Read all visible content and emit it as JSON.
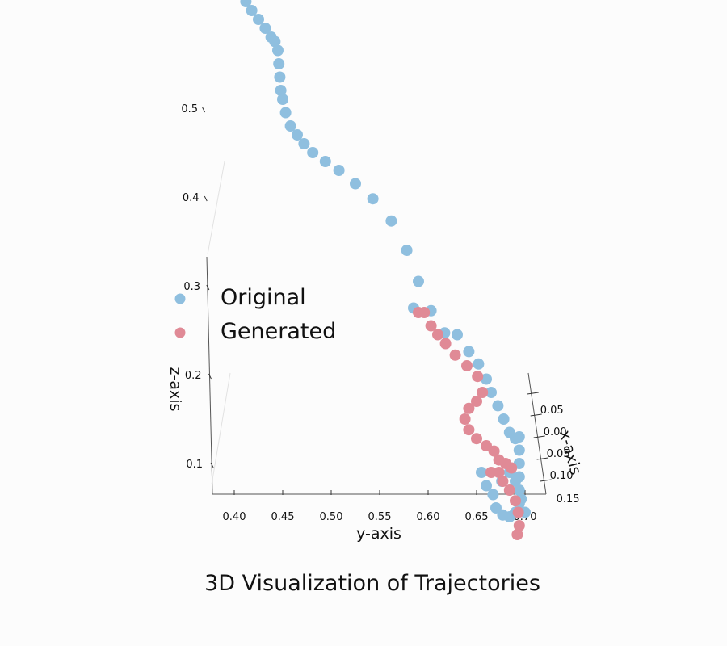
{
  "chart_data": {
    "type": "scatter",
    "projection": "3d",
    "title": "3D Visualization of Trajectories",
    "xlabel": "x-axis",
    "ylabel": "y-axis",
    "zlabel": "z-axis",
    "y_ticks": [
      "0.40",
      "0.45",
      "0.50",
      "0.55",
      "0.60",
      "0.65",
      "0.70"
    ],
    "z_ticks": [
      "0.1",
      "0.2",
      "0.3",
      "0.4",
      "0.5"
    ],
    "x_ticks": [
      "0.05",
      "0.00",
      "0.05",
      "0.10",
      "0.15"
    ],
    "legend": {
      "placement": "upper-left",
      "entries": [
        "Original",
        "Generated"
      ]
    },
    "series": [
      {
        "name": "Original",
        "color": "#8fbfdf",
        "points": [
          [
            0.0,
            0.412,
            0.62
          ],
          [
            0.0,
            0.412,
            0.625
          ],
          [
            0.0,
            0.418,
            0.61
          ],
          [
            0.0,
            0.425,
            0.6
          ],
          [
            0.0,
            0.432,
            0.59
          ],
          [
            0.0,
            0.438,
            0.58
          ],
          [
            0.0,
            0.442,
            0.575
          ],
          [
            0.0,
            0.445,
            0.565
          ],
          [
            0.0,
            0.446,
            0.55
          ],
          [
            0.0,
            0.447,
            0.535
          ],
          [
            0.0,
            0.448,
            0.52
          ],
          [
            0.0,
            0.45,
            0.51
          ],
          [
            0.0,
            0.453,
            0.495
          ],
          [
            0.0,
            0.458,
            0.48
          ],
          [
            0.0,
            0.465,
            0.47
          ],
          [
            0.0,
            0.472,
            0.46
          ],
          [
            0.0,
            0.481,
            0.45
          ],
          [
            0.0,
            0.494,
            0.44
          ],
          [
            0.0,
            0.508,
            0.43
          ],
          [
            0.0,
            0.525,
            0.415
          ],
          [
            0.0,
            0.543,
            0.398
          ],
          [
            0.0,
            0.562,
            0.373
          ],
          [
            0.0,
            0.578,
            0.34
          ],
          [
            0.0,
            0.59,
            0.305
          ],
          [
            0.0,
            0.585,
            0.275
          ],
          [
            0.0,
            0.603,
            0.272
          ],
          [
            0.0,
            0.617,
            0.247
          ],
          [
            0.0,
            0.63,
            0.245
          ],
          [
            0.0,
            0.642,
            0.226
          ],
          [
            0.0,
            0.652,
            0.212
          ],
          [
            0.0,
            0.66,
            0.195
          ],
          [
            0.0,
            0.665,
            0.18
          ],
          [
            0.0,
            0.672,
            0.165
          ],
          [
            0.0,
            0.678,
            0.15
          ],
          [
            0.0,
            0.684,
            0.135
          ],
          [
            0.0,
            0.69,
            0.128
          ],
          [
            0.0,
            0.694,
            0.13
          ],
          [
            0.0,
            0.694,
            0.115
          ],
          [
            0.0,
            0.694,
            0.1
          ],
          [
            0.0,
            0.694,
            0.085
          ],
          [
            0.0,
            0.694,
            0.07
          ],
          [
            0.0,
            0.694,
            0.055
          ],
          [
            0.0,
            0.69,
            0.045
          ],
          [
            0.0,
            0.684,
            0.04
          ],
          [
            0.0,
            0.677,
            0.042
          ],
          [
            0.0,
            0.67,
            0.05
          ],
          [
            0.0,
            0.667,
            0.065
          ],
          [
            0.0,
            0.676,
            0.08
          ],
          [
            0.0,
            0.684,
            0.09
          ],
          [
            0.0,
            0.69,
            0.08
          ],
          [
            0.0,
            0.696,
            0.06
          ],
          [
            0.0,
            0.7,
            0.045
          ],
          [
            0.0,
            0.655,
            0.09
          ],
          [
            0.0,
            0.66,
            0.075
          ]
        ]
      },
      {
        "name": "Generated",
        "color": "#e08a96",
        "points": [
          [
            0.0,
            0.59,
            0.27
          ],
          [
            0.0,
            0.596,
            0.27
          ],
          [
            0.0,
            0.603,
            0.255
          ],
          [
            0.0,
            0.61,
            0.245
          ],
          [
            0.0,
            0.618,
            0.235
          ],
          [
            0.0,
            0.628,
            0.222
          ],
          [
            0.0,
            0.64,
            0.21
          ],
          [
            0.0,
            0.651,
            0.198
          ],
          [
            0.0,
            0.656,
            0.18
          ],
          [
            0.0,
            0.65,
            0.17
          ],
          [
            0.0,
            0.642,
            0.162
          ],
          [
            0.0,
            0.638,
            0.15
          ],
          [
            0.0,
            0.642,
            0.138
          ],
          [
            0.0,
            0.65,
            0.128
          ],
          [
            0.0,
            0.66,
            0.12
          ],
          [
            0.0,
            0.668,
            0.114
          ],
          [
            0.0,
            0.673,
            0.104
          ],
          [
            0.0,
            0.673,
            0.09
          ],
          [
            0.0,
            0.677,
            0.08
          ],
          [
            0.0,
            0.684,
            0.07
          ],
          [
            0.0,
            0.69,
            0.058
          ],
          [
            0.0,
            0.693,
            0.045
          ],
          [
            0.0,
            0.694,
            0.03
          ],
          [
            0.0,
            0.692,
            0.02
          ],
          [
            0.0,
            0.686,
            0.095
          ],
          [
            0.0,
            0.68,
            0.1
          ],
          [
            0.0,
            0.665,
            0.09
          ]
        ]
      }
    ]
  }
}
